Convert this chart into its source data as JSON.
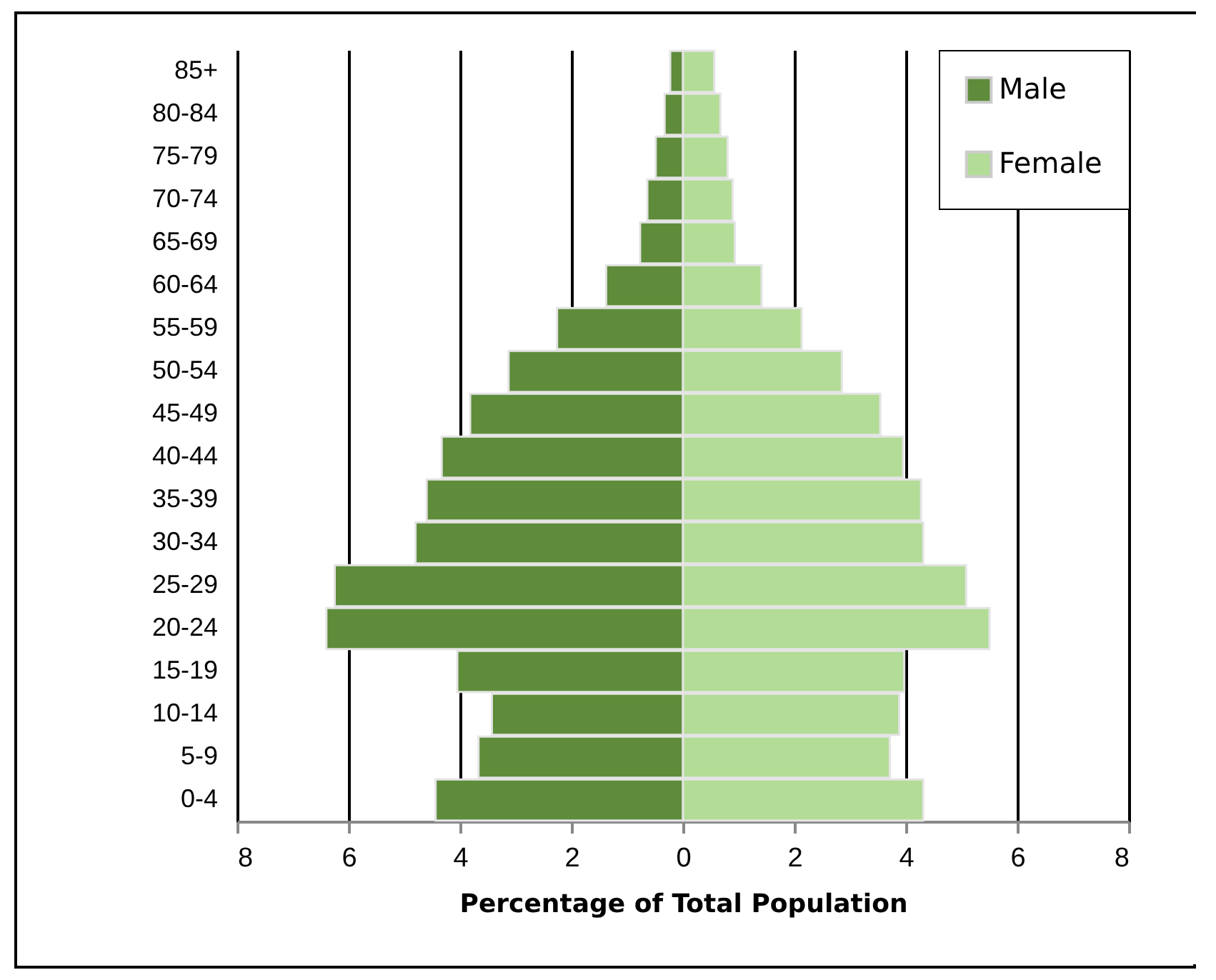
{
  "chart_data": {
    "type": "bar",
    "orientation": "horizontal",
    "xlabel": "Percentage of Total Population",
    "categories": [
      "85+",
      "80-84",
      "75-79",
      "70-74",
      "65-69",
      "60-64",
      "55-59",
      "50-54",
      "45-49",
      "40-44",
      "35-39",
      "30-34",
      "25-29",
      "20-24",
      "15-19",
      "10-14",
      "5-9",
      "0-4"
    ],
    "series": [
      {
        "name": "Male",
        "color": "#5e8c3a",
        "values": [
          -0.23,
          -0.33,
          -0.49,
          -0.64,
          -0.77,
          -1.38,
          -2.26,
          -3.13,
          -3.82,
          -4.33,
          -4.6,
          -4.8,
          -6.25,
          -6.4,
          -4.05,
          -3.43,
          -3.67,
          -4.44
        ]
      },
      {
        "name": "Female",
        "color": "#b3dc96",
        "values": [
          0.56,
          0.67,
          0.8,
          0.89,
          0.93,
          1.41,
          2.13,
          2.85,
          3.54,
          3.95,
          4.27,
          4.31,
          5.08,
          5.5,
          3.97,
          3.88,
          3.71,
          4.31
        ]
      }
    ],
    "xlim": [
      -8,
      8
    ],
    "xticks": [
      {
        "value": -8,
        "label": "8"
      },
      {
        "value": -6,
        "label": "6"
      },
      {
        "value": -4,
        "label": "4"
      },
      {
        "value": -2,
        "label": "2"
      },
      0,
      2,
      4,
      6,
      8
    ],
    "stacked": true,
    "grid": "x",
    "legend": "top right"
  }
}
